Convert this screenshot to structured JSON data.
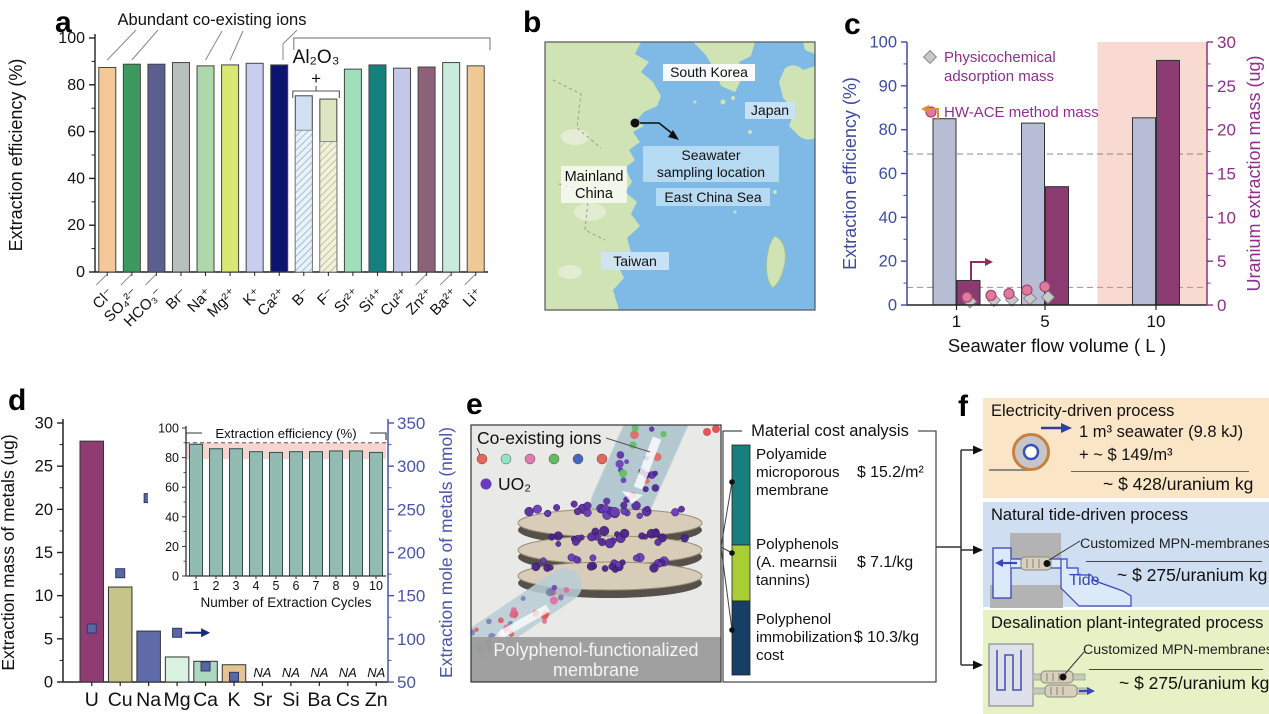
{
  "panel_labels": {
    "a": "a",
    "b": "b",
    "c": "c",
    "d": "d",
    "e": "e",
    "f": "f"
  },
  "chart_data": [
    {
      "id": "panel-a",
      "type": "bar",
      "ylabel": "Extraction efficiency (%)",
      "ylim": [
        0,
        100
      ],
      "yticks": [
        0,
        20,
        40,
        60,
        80,
        100
      ],
      "grid": false,
      "categories": [
        "Cl⁻",
        "SO₄²⁻",
        "HCO₃⁻",
        "Br⁻",
        "Na⁺",
        "Mg²⁺",
        "K⁺",
        "Ca²⁺",
        "B⁻",
        "F⁻",
        "Sr²⁺",
        "Si⁴⁺",
        "Cu²⁺",
        "Zn²⁺",
        "Ba²⁺",
        "Li⁺"
      ],
      "values": [
        87.4,
        88.8,
        88.8,
        89.5,
        88.1,
        88.5,
        89.2,
        88.5,
        75.3,
        73.9,
        86.7,
        88.5,
        87.1,
        87.6,
        89.5,
        88.1
      ],
      "bar_colors": [
        "#f7c897",
        "#3c9a5f",
        "#5a5f8f",
        "#b9bfbd",
        "#aed7ab",
        "#d9e873",
        "#c9cef0",
        "#0d1470",
        "#cfe0f0",
        "#dde6c3",
        "#9fdfb9",
        "#15807e",
        "#c3c7e8",
        "#8d6279",
        "#c8ebdd",
        "#efca96"
      ],
      "hatched_lower": {
        "8": 60.6,
        "9": 55.7
      },
      "annotations": {
        "group_label": "Abundant co-existing ions",
        "group_targets": [
          0,
          1,
          4,
          5,
          7
        ],
        "al2o3_label": "Al₂O₃",
        "plus": "+",
        "al2o3_bars": [
          8,
          9
        ],
        "top_bracket_bars": [
          8,
          15
        ]
      }
    },
    {
      "id": "panel-c",
      "type": "bar",
      "xlabel": "Seawater flow volume ( L )",
      "categories": [
        "1",
        "5",
        "10"
      ],
      "series": [
        {
          "name": "Extraction efficiency (%)",
          "axis": "left",
          "values": [
            82.5,
            81.5,
            82.7
          ],
          "color": "#b6bdd4"
        },
        {
          "name": "Uranium extraction mass (ug)",
          "axis": "right",
          "values": [
            2.8,
            13.5,
            27.9
          ],
          "color": "#8c3a72"
        }
      ],
      "left_axis": {
        "label": "Extraction efficiency (%)",
        "ticks": [
          0,
          20,
          40,
          60,
          80,
          90,
          100
        ],
        "color": "#3e4c9c",
        "note": "scale above 80 stretched 2x"
      },
      "right_axis": {
        "label": "Uranium extraction mass (ug)",
        "ticks": [
          0,
          5,
          10,
          15,
          20,
          25,
          30
        ],
        "color": "#8e2f8e"
      },
      "legend": [
        {
          "marker": "diamond",
          "color": "#c9c9c9",
          "lines": [
            "Physicochemical",
            "adsorption mass"
          ]
        },
        {
          "marker": "circle",
          "color": "#e4799f",
          "lines": [
            "HW-ACE method mass"
          ]
        }
      ],
      "scatter_circles_ug": [
        [
          0.2,
          0.9
        ],
        [
          0.28,
          1.1
        ],
        [
          0.34,
          1.3
        ],
        [
          0.4,
          1.7
        ],
        [
          0.46,
          2.1
        ]
      ],
      "scatter_diamonds_ug": [
        [
          0.21,
          0.4
        ],
        [
          0.29,
          0.55
        ],
        [
          0.35,
          0.6
        ],
        [
          0.41,
          0.75
        ],
        [
          0.47,
          0.9
        ]
      ],
      "dashed_gray_pct": 68.9,
      "dashed_pink_ug": 2.0,
      "shaded_region_frac": [
        0.635,
        1.0
      ],
      "shade_color": "#f9dad2"
    },
    {
      "id": "panel-d",
      "type": "bar",
      "categories": [
        "U",
        "Cu",
        "Na",
        "Mg",
        "Ca",
        "K",
        "Sr",
        "Si",
        "Ba",
        "Cs",
        "Zn"
      ],
      "mass_ug": [
        27.9,
        11.0,
        5.9,
        2.9,
        2.4,
        2.0,
        null,
        null,
        null,
        null,
        null
      ],
      "mole_nmol": [
        112,
        176,
        263,
        107,
        68,
        56,
        null,
        null,
        null,
        null,
        null
      ],
      "na_label": "NA",
      "bar_colors": [
        "#8f3c72",
        "#c6c488",
        "#5f6ba8",
        "#d9f2df",
        "#abd8be",
        "#e3c492"
      ],
      "marker_color": "#5a67a5",
      "left_axis": {
        "label": "Extraction mass of metals (ug)",
        "ticks": [
          0,
          5,
          10,
          15,
          20,
          25,
          30
        ],
        "color": "#222222"
      },
      "right_axis": {
        "label": "Extraction mole of metals (nmol)",
        "ticks": [
          50,
          100,
          150,
          200,
          250,
          300,
          350
        ],
        "color": "#4a55a8"
      }
    },
    {
      "id": "panel-d-inset",
      "type": "bar",
      "title": "Extraction efficiency (%)",
      "xlabel": "Number of Extraction Cycles",
      "categories": [
        "1",
        "2",
        "3",
        "4",
        "5",
        "6",
        "7",
        "8",
        "9",
        "10"
      ],
      "values": [
        89,
        86,
        86,
        84,
        83.5,
        84,
        84,
        84.5,
        84.5,
        83.5
      ],
      "yticks": [
        0,
        20,
        40,
        60,
        80,
        100
      ],
      "bar_color": "#92bbb1",
      "dashed_line": 90,
      "shaded_band": [
        79,
        90
      ],
      "band_color": "#f6cec8"
    }
  ],
  "map": {
    "sea_color": "#7fb9e6",
    "land_color": "#cfe3b4",
    "labels": {
      "south_korea": "South Korea",
      "japan": "Japan",
      "mainland_china_1": "Mainland",
      "mainland_china_2": "China",
      "sampling_1": "Seawater",
      "sampling_2": "sampling location",
      "east_china_sea": "East China Sea",
      "taiwan": "Taiwan"
    }
  },
  "panel_e": {
    "legend": {
      "co_existing_ions": "Co-existing ions",
      "uo2": "UO₂"
    },
    "ion_dot_colors": [
      "#e0685c",
      "#8fe6c6",
      "#dd7cb3",
      "#5fbe63",
      "#4169c0",
      "#e0685c"
    ],
    "uo2_color": "#6a3abf",
    "membrane_caption_1": "Polyphenol-functionalized",
    "membrane_caption_2": "membrane",
    "cost": {
      "title": "Material cost analysis",
      "items": [
        {
          "name_lines": [
            "Polyamide",
            "microporous",
            "membrane"
          ],
          "cost": "$ 15.2/m²",
          "color": "#17807e"
        },
        {
          "name_lines": [
            "Polyphenols",
            "(A. mearnsii",
            "tannins)"
          ],
          "cost": "$ 7.1/kg",
          "color": "#a9ce35"
        },
        {
          "name_lines": [
            "Polyphenol",
            "immobilization",
            "cost"
          ],
          "cost": "$ 10.3/kg",
          "color": "#173f63"
        }
      ]
    }
  },
  "panel_f": {
    "processes": [
      {
        "title": "Electricity-driven process",
        "bg": "#fae5c6",
        "line1": "1 m³ seawater (9.8 kJ)",
        "line2": "+ ~ $ 149/m³",
        "total": "~ $ 428/uranium kg"
      },
      {
        "title": "Natural tide-driven process",
        "bg": "#cfdff1",
        "membrane_label": "Customized MPN-membranes",
        "tide_label": "Tide",
        "total": "~ $ 275/uranium kg"
      },
      {
        "title": "Desalination plant-integrated process",
        "bg": "#e7f1c6",
        "membrane_label": "Customized MPN-membranes",
        "total": "~ $ 275/uranium kg"
      }
    ]
  }
}
